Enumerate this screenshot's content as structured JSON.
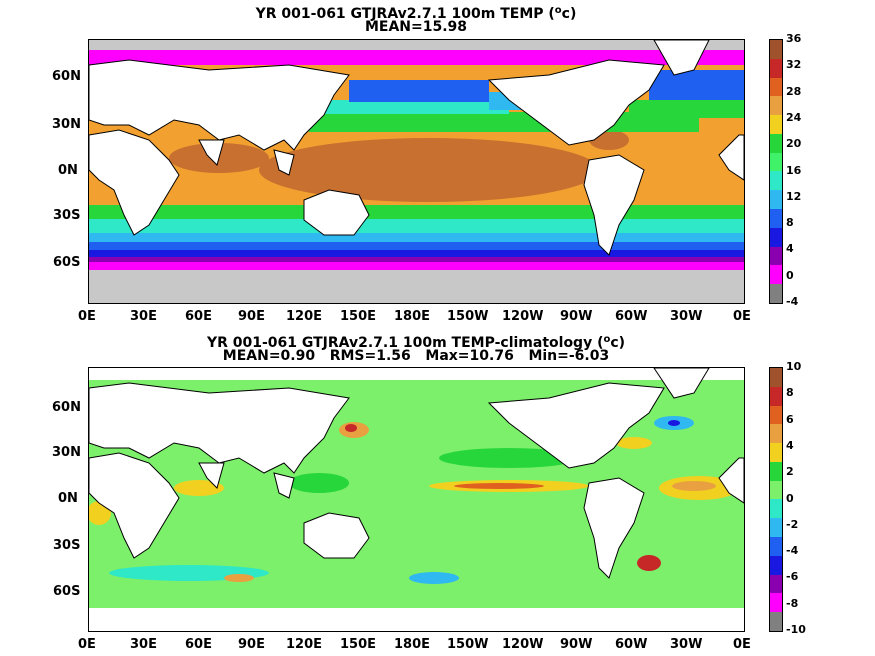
{
  "panels": [
    {
      "id": "top",
      "title_main": "YR 001-061 GTJRAv2.7.1 100m TEMP (",
      "title_sup": "o",
      "title_unit": "c)",
      "subtitle": "MEAN=15.98",
      "colorbar_labels": [
        "36",
        "32",
        "28",
        "24",
        "20",
        "16",
        "12",
        "8",
        "4",
        "0",
        "-4"
      ],
      "colorbar_colors": [
        "#a0522d",
        "#c62828",
        "#e06020",
        "#e8a040",
        "#f2d020",
        "#27d63a",
        "#3ff26a",
        "#2ee8c8",
        "#30b8f0",
        "#2060f0",
        "#1818e0",
        "#8a00b0",
        "#ff00ff",
        "#808080"
      ],
      "lat_labels": [
        "60N",
        "30N",
        "0N",
        "30S",
        "60S"
      ],
      "lon_labels": [
        "0E",
        "30E",
        "60E",
        "90E",
        "120E",
        "150E",
        "180E",
        "150W",
        "120W",
        "90W",
        "60W",
        "30W",
        "0E"
      ]
    },
    {
      "id": "bottom",
      "title_main": "YR 001-061 GTJRAv2.7.1 100m TEMP-climatology (",
      "title_sup": "o",
      "title_unit": "c)",
      "subtitle": "MEAN=0.90   RMS=1.56   Max=10.76   Min=-6.03",
      "colorbar_labels": [
        "10",
        "8",
        "6",
        "4",
        "2",
        "0",
        "-2",
        "-4",
        "-6",
        "-8",
        "-10"
      ],
      "colorbar_colors": [
        "#a0522d",
        "#c62828",
        "#e06020",
        "#e8a040",
        "#f2d020",
        "#27d63a",
        "#7cf06a",
        "#2ee8c8",
        "#30b8f0",
        "#2060f0",
        "#1818e0",
        "#8a00b0",
        "#ff00ff",
        "#808080"
      ],
      "lat_labels": [
        "60N",
        "30N",
        "0N",
        "30S",
        "60S"
      ],
      "lon_labels": [
        "0E",
        "30E",
        "60E",
        "90E",
        "120E",
        "150E",
        "180E",
        "150W",
        "120W",
        "90W",
        "60W",
        "30W",
        "0E"
      ]
    }
  ],
  "colors": {
    "land": "#ffffff",
    "ice": "#c8c8c8",
    "coast": "#000000",
    "ocean_bg_top": "#f2c020",
    "ocean_bg_bottom": "#7cf06a"
  }
}
